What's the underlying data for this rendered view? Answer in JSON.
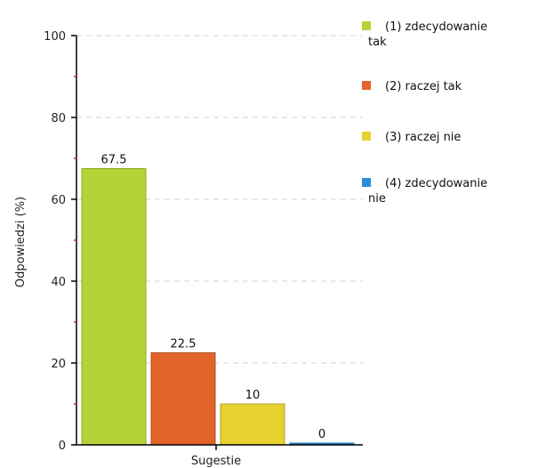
{
  "chart_data": {
    "type": "bar",
    "title": "",
    "xlabel": "Sugestie",
    "ylabel": "Odpowiedzi (%)",
    "ylim": [
      0,
      100
    ],
    "yticks": [
      0,
      20,
      40,
      60,
      80,
      100
    ],
    "grid": true,
    "legend_position": "right",
    "categories": [
      "Sugestie"
    ],
    "series": [
      {
        "name": "(1) zdecydowanie tak",
        "legend_lines": [
          "(1) zdecydowanie",
          "tak"
        ],
        "values": [
          67.5
        ],
        "value_label": "67.5",
        "color": "#b5d334",
        "border": "#8fa82a"
      },
      {
        "name": "(2) raczej tak",
        "legend_lines": [
          "(2) raczej tak"
        ],
        "values": [
          22.5
        ],
        "value_label": "22.5",
        "color": "#e2642b",
        "border": "#b34d20"
      },
      {
        "name": "(3) raczej nie",
        "legend_lines": [
          "(3) raczej nie"
        ],
        "values": [
          10
        ],
        "value_label": "10",
        "color": "#e5d22e",
        "border": "#b3a325"
      },
      {
        "name": "(4) zdecydowanie nie",
        "legend_lines": [
          "(4) zdecydowanie",
          "nie"
        ],
        "values": [
          0
        ],
        "value_label": "0",
        "color": "#2a8fd6",
        "border": "#1f6ea6"
      }
    ]
  }
}
